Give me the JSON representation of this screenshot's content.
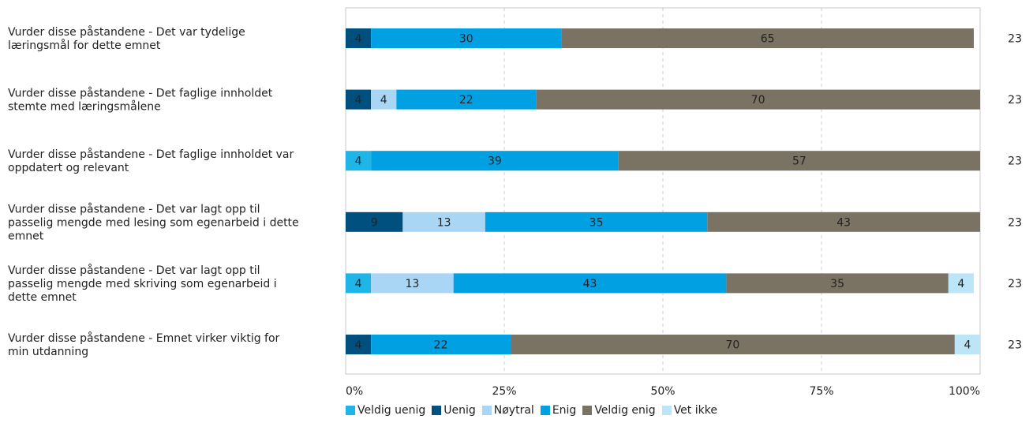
{
  "chart_data": {
    "type": "bar",
    "orientation": "horizontal",
    "stacked": true,
    "categories": [
      "Vurder disse påstandene  - Det var tydelige læringsmål for dette emnet",
      "Vurder disse påstandene  - Det faglige innholdet stemte med læringsmålene",
      "Vurder disse påstandene  - Det faglige innholdet var oppdatert og relevant",
      "Vurder disse påstandene  - Det var lagt opp til passelig mengde med lesing som egenarbeid i dette emnet",
      "Vurder disse påstandene  - Det var lagt opp til passelig mengde med skriving som egenarbeid i dette emnet",
      "Vurder disse påstandene  - Emnet virker viktig for min utdanning"
    ],
    "category_lines": [
      [
        "Vurder disse påstandene  - Det var tydelige",
        "læringsmål for dette emnet"
      ],
      [
        "Vurder disse påstandene  - Det faglige innholdet",
        "stemte med læringsmålene"
      ],
      [
        "Vurder disse påstandene  - Det faglige innholdet var",
        "oppdatert og relevant"
      ],
      [
        "Vurder disse påstandene  - Det var lagt opp til",
        "passelig mengde med lesing som egenarbeid i dette",
        "emnet"
      ],
      [
        "Vurder disse påstandene  - Det var lagt opp til",
        "passelig mengde med skriving som egenarbeid i",
        "dette emnet"
      ],
      [
        "Vurder disse påstandene  - Emnet virker viktig for",
        "min utdanning"
      ]
    ],
    "series": [
      {
        "name": "Veldig uenig",
        "color": "#1FB5E6",
        "values": [
          0,
          0,
          4,
          0,
          4,
          0
        ]
      },
      {
        "name": "Uenig",
        "color": "#00507F",
        "values": [
          4,
          4,
          0,
          9,
          0,
          4
        ]
      },
      {
        "name": "Nøytral",
        "color": "#A9D6F5",
        "values": [
          0,
          4,
          0,
          13,
          13,
          0
        ]
      },
      {
        "name": "Enig",
        "color": "#00A0E3",
        "values": [
          30,
          22,
          39,
          35,
          43,
          22
        ]
      },
      {
        "name": "Veldig enig",
        "color": "#7A7363",
        "values": [
          65,
          70,
          57,
          43,
          35,
          70
        ]
      },
      {
        "name": "Vet ikke",
        "color": "#BDE5F8",
        "values": [
          0,
          0,
          0,
          0,
          4,
          4
        ]
      }
    ],
    "counts": [
      "23",
      "23",
      "23",
      "23",
      "23",
      "23"
    ],
    "xlim": [
      0,
      100
    ],
    "xticks": [
      "0%",
      "25%",
      "50%",
      "75%",
      "100%"
    ],
    "grid": true,
    "legend_position": "bottom"
  }
}
